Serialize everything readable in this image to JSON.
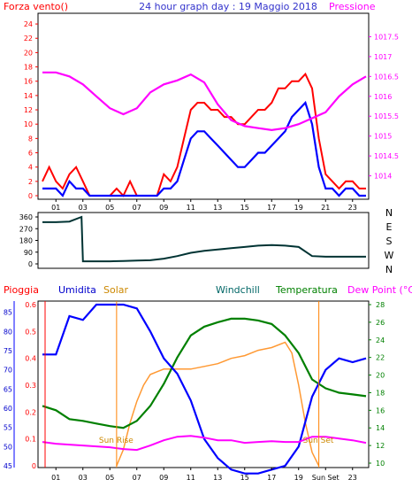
{
  "page_title": "24 hour graph day : 19 Maggio 2018",
  "colors": {
    "wind": "#ff0000",
    "gust": "#0000ff",
    "pressure": "#ff00ff",
    "direction": "#003333",
    "humidity": "#0000ff",
    "solar": "#ff9933",
    "windchill": "#006666",
    "temperature": "#008000",
    "dewpoint": "#ff00ff",
    "rain": "#ff0000",
    "sun_line": "#ff8000",
    "axis": "#000000"
  },
  "time_ticks": [
    "01",
    "03",
    "05",
    "07",
    "09",
    "11",
    "13",
    "15",
    "17",
    "19",
    "21",
    "23"
  ],
  "time_ticks_bottom": [
    "01",
    "03",
    "05",
    "07",
    "09",
    "11",
    "13",
    "15",
    "17",
    "19",
    "Sun Set",
    "23"
  ],
  "chart_data": [
    {
      "type": "line",
      "title": "24 hour graph day : 19 Maggio 2018",
      "left_label": "Forza vento()",
      "right_label": "Pressione",
      "xlim": [
        0,
        24
      ],
      "ylim": [
        0,
        25
      ],
      "y_ticks": [
        "0",
        "2",
        "4",
        "6",
        "8",
        "10",
        "12",
        "14",
        "16",
        "18",
        "20",
        "22",
        "24"
      ],
      "y2lim": [
        1013.5,
        1018
      ],
      "y2_ticks": [
        "1014",
        "1014.5",
        "1015",
        "1015.5",
        "1016",
        "1016.5",
        "1017",
        "1017.5"
      ],
      "series": [
        {
          "name": "wind",
          "x": [
            0,
            0.5,
            1,
            1.5,
            2,
            2.5,
            3,
            3.5,
            4,
            4.5,
            5,
            5.5,
            6,
            6.5,
            7,
            7.5,
            8,
            8.5,
            9,
            9.5,
            10,
            10.5,
            11,
            11.5,
            12,
            12.5,
            13,
            13.5,
            14,
            14.5,
            15,
            15.5,
            16,
            16.5,
            17,
            17.5,
            18,
            18.5,
            19,
            19.5,
            20,
            20.5,
            21,
            21.5,
            22,
            22.5,
            23,
            23.5,
            24
          ],
          "values": [
            2,
            4,
            2,
            1,
            3,
            4,
            2,
            0,
            0,
            0,
            0,
            1,
            0,
            2,
            0,
            0,
            0,
            0,
            3,
            2,
            4,
            8,
            12,
            13,
            13,
            12,
            12,
            11,
            11,
            10,
            10,
            11,
            12,
            12,
            13,
            15,
            15,
            16,
            16,
            17,
            15,
            8,
            3,
            2,
            1,
            2,
            2,
            1,
            1
          ]
        },
        {
          "name": "gust",
          "x": [
            0,
            0.5,
            1,
            1.5,
            2,
            2.5,
            3,
            3.5,
            4,
            4.5,
            5,
            5.5,
            6,
            6.5,
            7,
            7.5,
            8,
            8.5,
            9,
            9.5,
            10,
            10.5,
            11,
            11.5,
            12,
            12.5,
            13,
            13.5,
            14,
            14.5,
            15,
            15.5,
            16,
            16.5,
            17,
            17.5,
            18,
            18.5,
            19,
            19.5,
            20,
            20.5,
            21,
            21.5,
            22,
            22.5,
            23,
            23.5,
            24
          ],
          "values": [
            1,
            1,
            1,
            0,
            2,
            1,
            1,
            0,
            0,
            0,
            0,
            0,
            0,
            0,
            0,
            0,
            0,
            0,
            1,
            1,
            2,
            5,
            8,
            9,
            9,
            8,
            7,
            6,
            5,
            4,
            4,
            5,
            6,
            6,
            7,
            8,
            9,
            11,
            12,
            13,
            10,
            4,
            1,
            1,
            0,
            1,
            1,
            0,
            0
          ]
        },
        {
          "name": "pressure",
          "x": [
            0,
            1,
            2,
            3,
            4,
            5,
            6,
            7,
            8,
            9,
            10,
            11,
            12,
            13,
            14,
            15,
            16,
            17,
            18,
            19,
            20,
            21,
            22,
            23,
            24
          ],
          "values": [
            1016.6,
            1016.6,
            1016.5,
            1016.3,
            1016.0,
            1015.7,
            1015.55,
            1015.7,
            1016.1,
            1016.3,
            1016.4,
            1016.55,
            1016.35,
            1015.8,
            1015.4,
            1015.25,
            1015.2,
            1015.15,
            1015.2,
            1015.3,
            1015.45,
            1015.6,
            1016.0,
            1016.3,
            1016.5
          ]
        }
      ]
    },
    {
      "type": "line",
      "ylim": [
        0,
        360
      ],
      "y_ticks": [
        "0",
        "90",
        "180",
        "270",
        "360"
      ],
      "y2_ticks": [
        "N",
        "W",
        "S",
        "E",
        "N"
      ],
      "series": [
        {
          "name": "direction",
          "x": [
            0,
            1,
            2,
            2.9,
            3,
            4,
            5,
            6,
            7,
            8,
            9,
            10,
            11,
            12,
            13,
            14,
            15,
            16,
            17,
            18,
            19,
            20,
            21,
            22,
            23,
            24
          ],
          "values": [
            320,
            320,
            325,
            360,
            20,
            20,
            20,
            22,
            25,
            28,
            40,
            60,
            85,
            100,
            110,
            120,
            130,
            140,
            145,
            140,
            130,
            60,
            55,
            55,
            55,
            55
          ]
        }
      ]
    },
    {
      "type": "line",
      "labels": [
        "Pioggia",
        "Umidita",
        "Solar",
        "Windchill",
        "Temperatura",
        "Dew Point (°C)"
      ],
      "rain_ticks": [
        "0",
        "0.1",
        "0.2",
        "0.3",
        "0.4",
        "0.5",
        "0.6"
      ],
      "humidity_ticks": [
        "45",
        "50",
        "55",
        "60",
        "65",
        "70",
        "75",
        "80",
        "85"
      ],
      "temperature_ticks": [
        "10",
        "12",
        "14",
        "16",
        "18",
        "20",
        "22",
        "24",
        "26",
        "28"
      ],
      "annotations": [
        "Sun Rise",
        "Sun Set"
      ],
      "series": [
        {
          "name": "humidity",
          "x": [
            0,
            1,
            2,
            3,
            4,
            5,
            6,
            7,
            8,
            9,
            10,
            11,
            12,
            13,
            14,
            15,
            16,
            17,
            18,
            19,
            20,
            21,
            22,
            23,
            24
          ],
          "values": [
            74,
            74,
            84,
            83,
            87,
            87,
            87,
            86,
            80,
            73,
            69,
            62,
            52,
            47,
            44,
            43,
            43,
            44,
            45,
            50,
            63,
            70,
            73,
            72,
            73
          ]
        },
        {
          "name": "temperature",
          "x": [
            0,
            1,
            2,
            3,
            4,
            5,
            6,
            7,
            8,
            9,
            10,
            11,
            12,
            13,
            14,
            15,
            16,
            17,
            18,
            19,
            20,
            21,
            22,
            23,
            24
          ],
          "values": [
            16.5,
            16,
            15,
            14.8,
            14.5,
            14.2,
            14,
            14.8,
            16.5,
            19,
            22,
            24.5,
            25.5,
            26,
            26.4,
            26.4,
            26.2,
            25.8,
            24.5,
            22.5,
            19.5,
            18.5,
            18,
            17.8,
            17.6
          ]
        },
        {
          "name": "dewpoint",
          "x": [
            0,
            1,
            2,
            3,
            4,
            5,
            6,
            7,
            8,
            9,
            10,
            11,
            12,
            13,
            14,
            15,
            16,
            17,
            18,
            19,
            20,
            21,
            22,
            23,
            24
          ],
          "values": [
            12.4,
            12.2,
            12.1,
            12,
            11.9,
            11.8,
            11.6,
            11.5,
            12.0,
            12.6,
            13.0,
            13.1,
            12.9,
            12.6,
            12.6,
            12.3,
            12.4,
            12.5,
            12.4,
            12.4,
            13.0,
            13.0,
            12.8,
            12.6,
            12.3
          ]
        },
        {
          "name": "solar",
          "x": [
            5.5,
            6,
            6.5,
            7,
            7.5,
            8,
            8.5,
            9,
            10,
            11,
            12,
            13,
            14,
            15,
            16,
            17,
            18,
            18.5,
            19,
            19.5,
            20,
            20.5
          ],
          "values": [
            0,
            0.06,
            0.16,
            0.24,
            0.3,
            0.34,
            0.35,
            0.36,
            0.36,
            0.36,
            0.37,
            0.38,
            0.4,
            0.41,
            0.43,
            0.44,
            0.46,
            0.42,
            0.3,
            0.16,
            0.05,
            0
          ]
        }
      ]
    }
  ]
}
